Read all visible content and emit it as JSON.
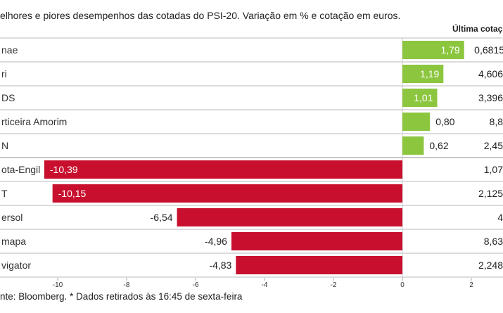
{
  "chart_data": {
    "type": "bar",
    "orientation": "horizontal",
    "title": "elhores e piores desempenhos das cotadas do PSI-20. Variação em % e cotação em euros.",
    "categories": [
      "nae",
      "ri",
      "DS",
      "rticeira Amorim",
      "N",
      "ota-Engil",
      "T",
      "ersol",
      "mapa",
      "vigator"
    ],
    "values": [
      1.79,
      1.19,
      1.01,
      0.8,
      0.62,
      -10.39,
      -10.15,
      -6.54,
      -4.96,
      -4.83
    ],
    "value_labels": [
      "1,79",
      "1,19",
      "1,01",
      "0,80",
      "0,62",
      "-10,39",
      "-10,15",
      "-6,54",
      "-4,96",
      "-4,83"
    ],
    "price_header": "Última cotaç",
    "prices": [
      "0,6815",
      "4,606",
      "3,396",
      "8,8",
      "2,45",
      "1,07",
      "2,125",
      "4",
      "8,63",
      "2,248"
    ],
    "xlim": [
      -11.7,
      2.9
    ],
    "xticks": [
      -10,
      -8,
      -6,
      -4,
      -2,
      0,
      2
    ],
    "xtick_labels": [
      "-10",
      "-8",
      "-6",
      "-4",
      "-2",
      "0",
      "2"
    ],
    "grid": "horizontal row separators",
    "colors": {
      "positive": "#8cc63f",
      "negative": "#c8102e",
      "grid": "#c8c8c8"
    },
    "footer": "nte: Bloomberg.  * Dados retirados às 16:45 de sexta-feira"
  }
}
